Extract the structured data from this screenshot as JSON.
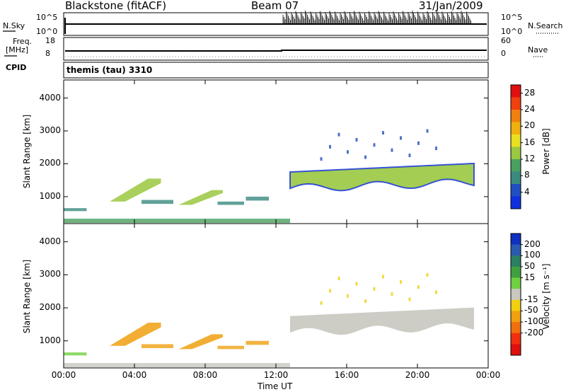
{
  "header": {
    "radar": "Blackstone (fitACF)",
    "beam": "Beam 07",
    "date": "31/Jan/2009"
  },
  "top_panels": {
    "nsky_label": "N.Sky",
    "nsky_ticks": [
      "10^5",
      "10^0"
    ],
    "nsearch_label": "N.Search",
    "nsearch_ticks": [
      "10^5",
      "10^0"
    ],
    "freq_label": "Freq.",
    "freq_unit": "[MHz]",
    "freq_ticks": [
      "18",
      "8"
    ],
    "nave_label": "Nave",
    "nave_ticks": [
      "60",
      "0"
    ],
    "cpid_label": "CPID",
    "cpid_value": "themis (tau) 3310"
  },
  "chart_data": [
    {
      "type": "heatmap",
      "name": "power",
      "ylabel": "Slant Range [km]",
      "xlabel": "",
      "x_ticks": [
        "00:00",
        "04:00",
        "08:00",
        "12:00",
        "16:00",
        "20:00",
        "00:00"
      ],
      "x_range_hours": [
        0,
        24
      ],
      "y_ticks": [
        1000,
        2000,
        3000,
        4000
      ],
      "y_range_km": [
        180,
        4550
      ],
      "colorbar": {
        "label": "Power [dB]",
        "tick_labels": [
          "4",
          "8",
          "12",
          "16",
          "20",
          "24",
          "28"
        ],
        "range": [
          0,
          30
        ],
        "colors": [
          "#1030e0",
          "#2050c0",
          "#3a8a80",
          "#4aa060",
          "#9ac840",
          "#e8e020",
          "#f0b010",
          "#f08010",
          "#f04010",
          "#e01010"
        ]
      },
      "features": [
        {
          "hour_start": 0.0,
          "hour_end": 1.3,
          "range_start_km": 560,
          "range_end_km": 650,
          "level": 6
        },
        {
          "hour_start": 2.6,
          "hour_end": 5.5,
          "range_start_km": 850,
          "range_end_km": 1550,
          "level": 14
        },
        {
          "hour_start": 4.4,
          "hour_end": 6.2,
          "range_start_km": 780,
          "range_end_km": 900,
          "level": 7
        },
        {
          "hour_start": 6.5,
          "hour_end": 9.0,
          "range_start_km": 750,
          "range_end_km": 1200,
          "level": 12
        },
        {
          "hour_start": 8.7,
          "hour_end": 10.2,
          "range_start_km": 750,
          "range_end_km": 850,
          "level": 8
        },
        {
          "hour_start": 10.3,
          "hour_end": 11.6,
          "range_start_km": 880,
          "range_end_km": 1000,
          "level": 7
        },
        {
          "hour_start": 0.0,
          "hour_end": 12.8,
          "range_start_km": 200,
          "range_end_km": 330,
          "level": 9
        },
        {
          "hour_start": 12.8,
          "hour_end": 23.2,
          "range_start_km": 1100,
          "range_end_km": 1900,
          "level": 13
        },
        {
          "hour_start": 14.5,
          "hour_end": 21.5,
          "range_start_km": 2200,
          "range_end_km": 3100,
          "level": 5
        }
      ]
    },
    {
      "type": "heatmap",
      "name": "velocity",
      "ylabel": "Slant Range [km]",
      "xlabel": "Time UT",
      "x_ticks": [
        "00:00",
        "04:00",
        "08:00",
        "12:00",
        "16:00",
        "20:00",
        "00:00"
      ],
      "x_range_hours": [
        0,
        24
      ],
      "y_ticks": [
        1000,
        2000,
        3000,
        4000
      ],
      "y_range_km": [
        180,
        4550
      ],
      "colorbar": {
        "label": "Velocity [m s⁻¹]",
        "tick_labels": [
          "200",
          "100",
          "50",
          "15",
          "-15",
          "-50",
          "-100",
          "-200"
        ],
        "colors": [
          "#1030c0",
          "#2a5ab0",
          "#2a8060",
          "#40a040",
          "#70d040",
          "#c8c8c0",
          "#f0d010",
          "#f0a010",
          "#f07010",
          "#f03010",
          "#e01010"
        ]
      },
      "features": [
        {
          "hour_start": 0.0,
          "hour_end": 1.3,
          "range_start_km": 560,
          "range_end_km": 650,
          "velocity": 30
        },
        {
          "hour_start": 2.6,
          "hour_end": 5.5,
          "range_start_km": 850,
          "range_end_km": 1550,
          "velocity": -80
        },
        {
          "hour_start": 4.4,
          "hour_end": 6.2,
          "range_start_km": 780,
          "range_end_km": 900,
          "velocity": -60
        },
        {
          "hour_start": 6.5,
          "hour_end": 9.0,
          "range_start_km": 750,
          "range_end_km": 1200,
          "velocity": -80
        },
        {
          "hour_start": 8.7,
          "hour_end": 10.2,
          "range_start_km": 750,
          "range_end_km": 850,
          "velocity": -70
        },
        {
          "hour_start": 10.3,
          "hour_end": 11.6,
          "range_start_km": 880,
          "range_end_km": 1000,
          "velocity": -60
        },
        {
          "hour_start": 0.0,
          "hour_end": 12.8,
          "range_start_km": 200,
          "range_end_km": 330,
          "velocity": 10
        },
        {
          "hour_start": 12.8,
          "hour_end": 23.2,
          "range_start_km": 1100,
          "range_end_km": 1900,
          "velocity": 0
        },
        {
          "hour_start": 14.5,
          "hour_end": 21.5,
          "range_start_km": 2200,
          "range_end_km": 3100,
          "velocity": -30
        }
      ]
    }
  ]
}
